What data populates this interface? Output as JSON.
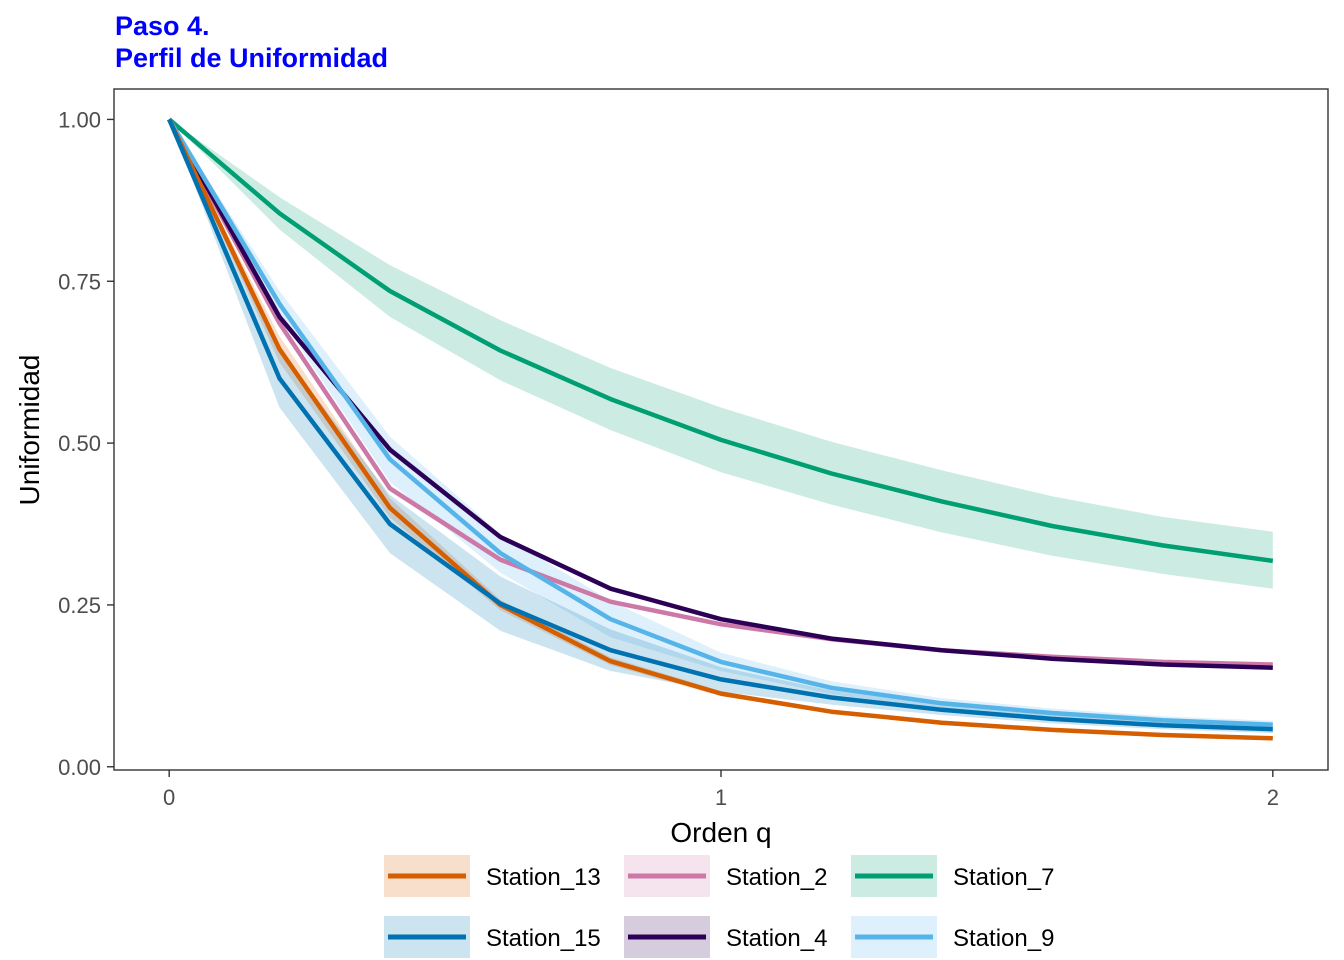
{
  "title": {
    "line1": "Paso 4.",
    "line2": "Perfil de Uniformidad",
    "color": "#0000FF"
  },
  "chart_data": {
    "type": "line",
    "title": "Paso 4. Perfil de Uniformidad",
    "xlabel": "Orden q",
    "ylabel": "Uniformidad",
    "x": [
      0,
      0.2,
      0.4,
      0.6,
      0.8,
      1.0,
      1.2,
      1.4,
      1.6,
      1.8,
      2.0
    ],
    "xlim": [
      -0.1,
      2.1
    ],
    "ylim": [
      -0.005,
      1.047
    ],
    "xticks": [
      0,
      1,
      2
    ],
    "xtick_labels": [
      "0",
      "1",
      "2"
    ],
    "yticks": [
      0,
      0.25,
      0.5,
      0.75,
      1.0
    ],
    "ytick_labels": [
      "0.00",
      "0.25",
      "0.50",
      "0.75",
      "1.00"
    ],
    "grid": false,
    "legend_position": "bottom",
    "series": [
      {
        "name": "Station_13",
        "color": "#D55E00",
        "values": [
          1.0,
          0.645,
          0.4,
          0.25,
          0.163,
          0.113,
          0.085,
          0.068,
          0.057,
          0.049,
          0.044
        ],
        "lower": [
          1.0,
          0.625,
          0.385,
          0.242,
          0.157,
          0.109,
          0.082,
          0.066,
          0.055,
          0.047,
          0.042
        ],
        "upper": [
          1.0,
          0.665,
          0.415,
          0.258,
          0.169,
          0.117,
          0.088,
          0.07,
          0.059,
          0.051,
          0.046
        ]
      },
      {
        "name": "Station_15",
        "color": "#0072B2",
        "values": [
          1.0,
          0.6,
          0.375,
          0.252,
          0.18,
          0.135,
          0.107,
          0.088,
          0.074,
          0.064,
          0.058
        ],
        "lower": [
          1.0,
          0.555,
          0.33,
          0.21,
          0.148,
          0.116,
          0.096,
          0.08,
          0.067,
          0.058,
          0.052
        ],
        "upper": [
          1.0,
          0.645,
          0.42,
          0.294,
          0.212,
          0.154,
          0.118,
          0.096,
          0.081,
          0.07,
          0.064
        ]
      },
      {
        "name": "Station_2",
        "color": "#CC79A7",
        "values": [
          1.0,
          0.685,
          0.43,
          0.32,
          0.255,
          0.22,
          0.197,
          0.18,
          0.17,
          0.162,
          0.158
        ],
        "lower": [
          1.0,
          0.68,
          0.425,
          0.316,
          0.252,
          0.217,
          0.195,
          0.178,
          0.168,
          0.16,
          0.156
        ],
        "upper": [
          1.0,
          0.69,
          0.435,
          0.324,
          0.258,
          0.223,
          0.199,
          0.182,
          0.172,
          0.164,
          0.16
        ]
      },
      {
        "name": "Station_4",
        "color": "#2D0057",
        "values": [
          1.0,
          0.695,
          0.49,
          0.355,
          0.275,
          0.228,
          0.198,
          0.18,
          0.167,
          0.158,
          0.153
        ],
        "lower": [
          1.0,
          0.69,
          0.485,
          0.351,
          0.272,
          0.225,
          0.196,
          0.178,
          0.165,
          0.156,
          0.151
        ],
        "upper": [
          1.0,
          0.7,
          0.495,
          0.359,
          0.278,
          0.231,
          0.2,
          0.182,
          0.169,
          0.16,
          0.155
        ]
      },
      {
        "name": "Station_7",
        "color": "#009E73",
        "values": [
          1.0,
          0.855,
          0.735,
          0.643,
          0.568,
          0.505,
          0.453,
          0.41,
          0.372,
          0.342,
          0.318
        ],
        "lower": [
          1.0,
          0.83,
          0.695,
          0.597,
          0.52,
          0.455,
          0.405,
          0.362,
          0.326,
          0.298,
          0.275
        ],
        "upper": [
          1.0,
          0.88,
          0.775,
          0.69,
          0.616,
          0.555,
          0.502,
          0.458,
          0.418,
          0.386,
          0.363
        ]
      },
      {
        "name": "Station_9",
        "color": "#56B4E9",
        "values": [
          1.0,
          0.715,
          0.475,
          0.33,
          0.228,
          0.162,
          0.122,
          0.098,
          0.083,
          0.072,
          0.065
        ],
        "lower": [
          1.0,
          0.695,
          0.44,
          0.3,
          0.2,
          0.148,
          0.112,
          0.09,
          0.076,
          0.066,
          0.059
        ],
        "upper": [
          1.0,
          0.735,
          0.51,
          0.36,
          0.256,
          0.176,
          0.132,
          0.106,
          0.09,
          0.078,
          0.071
        ]
      }
    ],
    "draw_order": [
      "Station_7",
      "Station_2",
      "Station_4",
      "Station_9",
      "Station_13",
      "Station_15"
    ],
    "legend_order": [
      "Station_13",
      "Station_2",
      "Station_7",
      "Station_15",
      "Station_4",
      "Station_9"
    ]
  }
}
